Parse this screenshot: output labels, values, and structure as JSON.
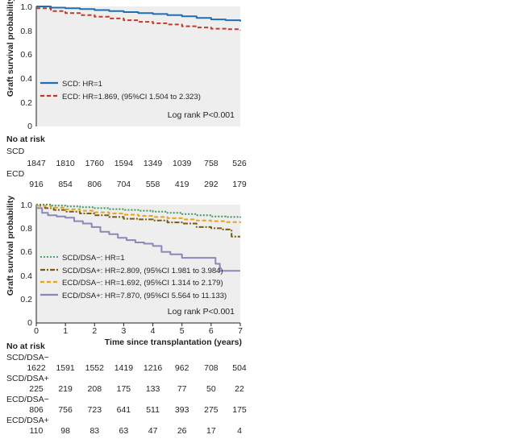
{
  "chart_data": [
    {
      "type": "line",
      "ylabel": "Graft survival probability",
      "ylim": [
        0,
        1.0
      ],
      "xlim": [
        0,
        7
      ],
      "yticks": [
        "0",
        "0.2",
        "0.4",
        "0.6",
        "0.8",
        "1.0"
      ],
      "grid": false,
      "legend_position": "bottom-left",
      "annotation": "Log rank P<0.001",
      "series": [
        {
          "name": "SCD: HR=1",
          "color": "#1f6fb2",
          "dash": "solid",
          "x": [
            0,
            0.5,
            1,
            1.5,
            2,
            2.5,
            3,
            3.5,
            4,
            4.5,
            5,
            5.5,
            6,
            6.5,
            7
          ],
          "y": [
            1.0,
            0.99,
            0.985,
            0.978,
            0.97,
            0.962,
            0.953,
            0.945,
            0.937,
            0.928,
            0.918,
            0.905,
            0.892,
            0.885,
            0.875
          ]
        },
        {
          "name": "ECD: HR=1.869, (95%CI 1.504 to 2.323)",
          "color": "#c0392b",
          "dash": "dashed",
          "x": [
            0,
            0.5,
            1,
            1.5,
            2,
            2.5,
            3,
            3.5,
            4,
            4.5,
            5,
            5.5,
            6,
            6.5,
            7
          ],
          "y": [
            0.985,
            0.962,
            0.945,
            0.928,
            0.915,
            0.9,
            0.885,
            0.872,
            0.86,
            0.85,
            0.835,
            0.825,
            0.815,
            0.81,
            0.8
          ]
        }
      ],
      "at_risk": {
        "title": "No at risk",
        "groups": [
          {
            "label": "SCD",
            "values": [
              "1847",
              "1810",
              "1760",
              "1594",
              "1349",
              "1039",
              "758",
              "526"
            ]
          },
          {
            "label": "ECD",
            "values": [
              "916",
              "854",
              "806",
              "704",
              "558",
              "419",
              "292",
              "179"
            ]
          }
        ]
      }
    },
    {
      "type": "line",
      "ylabel": "Graft survival probability",
      "xlabel": "Time since transplantation (years)",
      "ylim": [
        0,
        1.0
      ],
      "xlim": [
        0,
        7
      ],
      "yticks": [
        "0",
        "0.2",
        "0.4",
        "0.6",
        "0.8",
        "1.0"
      ],
      "xticks": [
        "0",
        "1",
        "2",
        "3",
        "4",
        "5",
        "6",
        "7"
      ],
      "grid": false,
      "legend_position": "bottom-left",
      "annotation": "Log rank P<0.001",
      "series": [
        {
          "name": "SCD/DSA−: HR=1",
          "color": "#3c9a5f",
          "dash": "dotted",
          "x": [
            0,
            0.5,
            1,
            1.5,
            2,
            2.5,
            3,
            3.5,
            4,
            4.5,
            5,
            5.5,
            6,
            6.5,
            7
          ],
          "y": [
            1.0,
            0.992,
            0.985,
            0.978,
            0.97,
            0.962,
            0.955,
            0.948,
            0.94,
            0.93,
            0.92,
            0.91,
            0.9,
            0.895,
            0.89
          ]
        },
        {
          "name": "SCD/DSA+: HR=2.809, (95%CI 1.981 to 3.984)",
          "color": "#7a5a10",
          "dash": "dashdot",
          "x": [
            0,
            0.3,
            0.6,
            1,
            1.5,
            2,
            2.5,
            3,
            3.5,
            4,
            4.5,
            5,
            5.5,
            6,
            6.4,
            6.7,
            7
          ],
          "y": [
            0.99,
            0.97,
            0.955,
            0.94,
            0.925,
            0.91,
            0.895,
            0.88,
            0.875,
            0.865,
            0.85,
            0.84,
            0.81,
            0.8,
            0.79,
            0.73,
            0.73
          ]
        },
        {
          "name": "ECD/DSA−: HR=1.692, (95%CI 1.314 to 2.179)",
          "color": "#e8a317",
          "dash": "dashed",
          "x": [
            0,
            0.5,
            1,
            1.5,
            2,
            2.5,
            3,
            3.5,
            4,
            4.5,
            5,
            5.5,
            6,
            6.5,
            7
          ],
          "y": [
            0.99,
            0.975,
            0.96,
            0.948,
            0.935,
            0.925,
            0.915,
            0.905,
            0.895,
            0.885,
            0.875,
            0.865,
            0.86,
            0.852,
            0.845
          ]
        },
        {
          "name": "ECD/DSA+: HR=7.870, (95%CI 5.564 to 11.133)",
          "color": "#8e86b5",
          "dash": "solid",
          "x": [
            0,
            0.2,
            0.4,
            0.7,
            1,
            1.3,
            1.6,
            1.9,
            2.2,
            2.5,
            2.8,
            3.1,
            3.4,
            3.7,
            4,
            4.3,
            4.6,
            5,
            5.5,
            6,
            6.15,
            6.3,
            7
          ],
          "y": [
            0.97,
            0.93,
            0.91,
            0.9,
            0.89,
            0.86,
            0.84,
            0.81,
            0.77,
            0.75,
            0.72,
            0.7,
            0.68,
            0.67,
            0.65,
            0.6,
            0.58,
            0.55,
            0.55,
            0.55,
            0.5,
            0.44,
            0.44
          ]
        }
      ],
      "at_risk": {
        "title": "No at risk",
        "groups": [
          {
            "label": "SCD/DSA−",
            "values": [
              "1622",
              "1591",
              "1552",
              "1419",
              "1216",
              "962",
              "708",
              "504"
            ]
          },
          {
            "label": "SCD/DSA+",
            "values": [
              "225",
              "219",
              "208",
              "175",
              "133",
              "77",
              "50",
              "22"
            ]
          },
          {
            "label": "ECD/DSA−",
            "values": [
              "806",
              "756",
              "723",
              "641",
              "511",
              "393",
              "275",
              "175"
            ]
          },
          {
            "label": "ECD/DSA+",
            "values": [
              "110",
              "98",
              "83",
              "63",
              "47",
              "26",
              "17",
              "4"
            ]
          }
        ]
      }
    }
  ]
}
